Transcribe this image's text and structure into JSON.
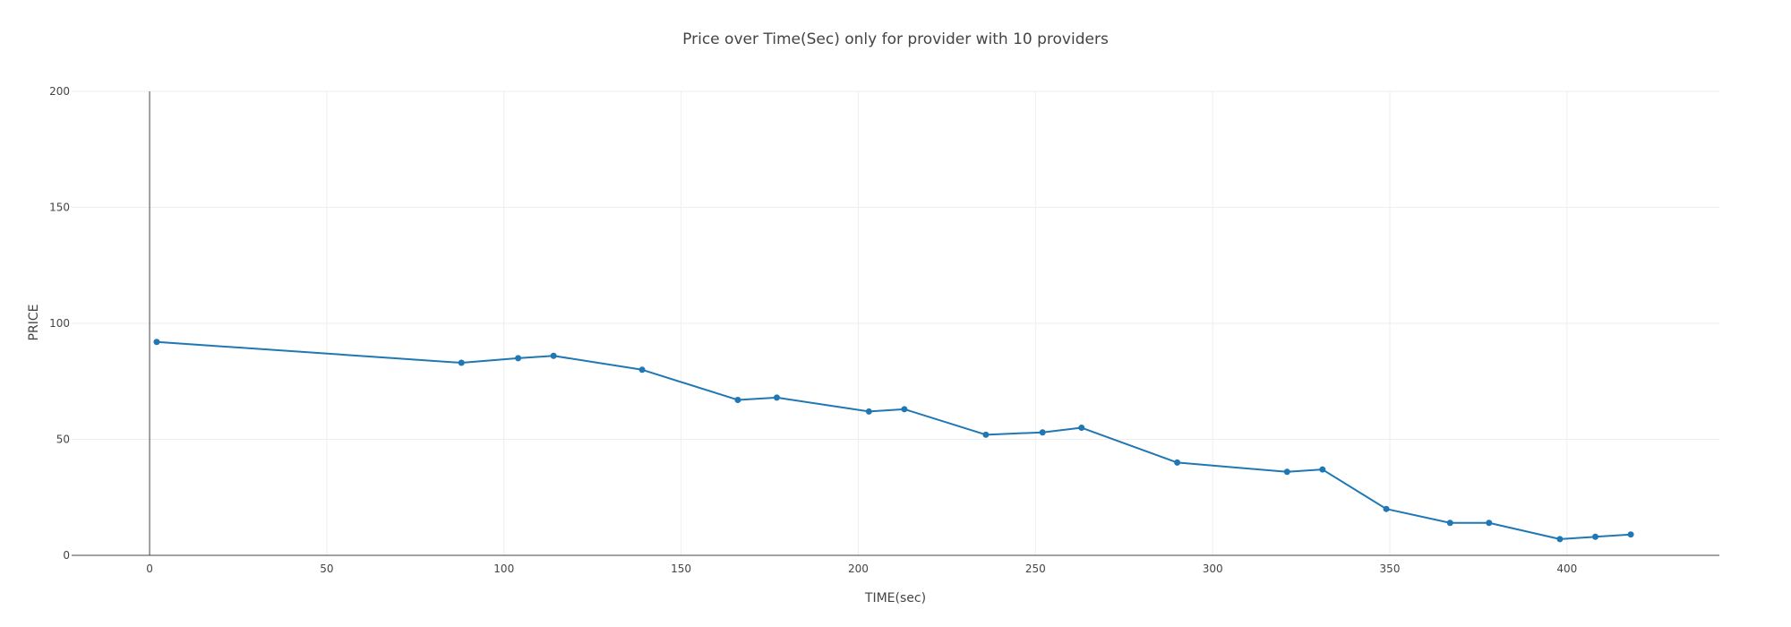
{
  "chart_data": {
    "type": "line",
    "title": "Price over Time(Sec) only for provider with 10 providers",
    "xlabel": "TIME(sec)",
    "ylabel": "PRICE",
    "xlim": [
      -22,
      443
    ],
    "ylim": [
      0,
      200
    ],
    "xticks": [
      0,
      50,
      100,
      150,
      200,
      250,
      300,
      350,
      400
    ],
    "yticks": [
      0,
      50,
      100,
      150,
      200
    ],
    "grid": true,
    "colors": {
      "line": "#1f77b4",
      "grid": "#eeeeee",
      "axis": "#444444"
    },
    "series": [
      {
        "x": [
          2,
          88,
          104,
          114,
          139,
          166,
          177,
          203,
          213,
          236,
          252,
          263,
          290,
          321,
          331,
          349,
          367,
          378,
          398,
          408,
          418
        ],
        "y": [
          92,
          83,
          85,
          86,
          80,
          67,
          68,
          62,
          63,
          52,
          53,
          55,
          40,
          36,
          37,
          20,
          14,
          14,
          7,
          8,
          9
        ]
      }
    ]
  }
}
